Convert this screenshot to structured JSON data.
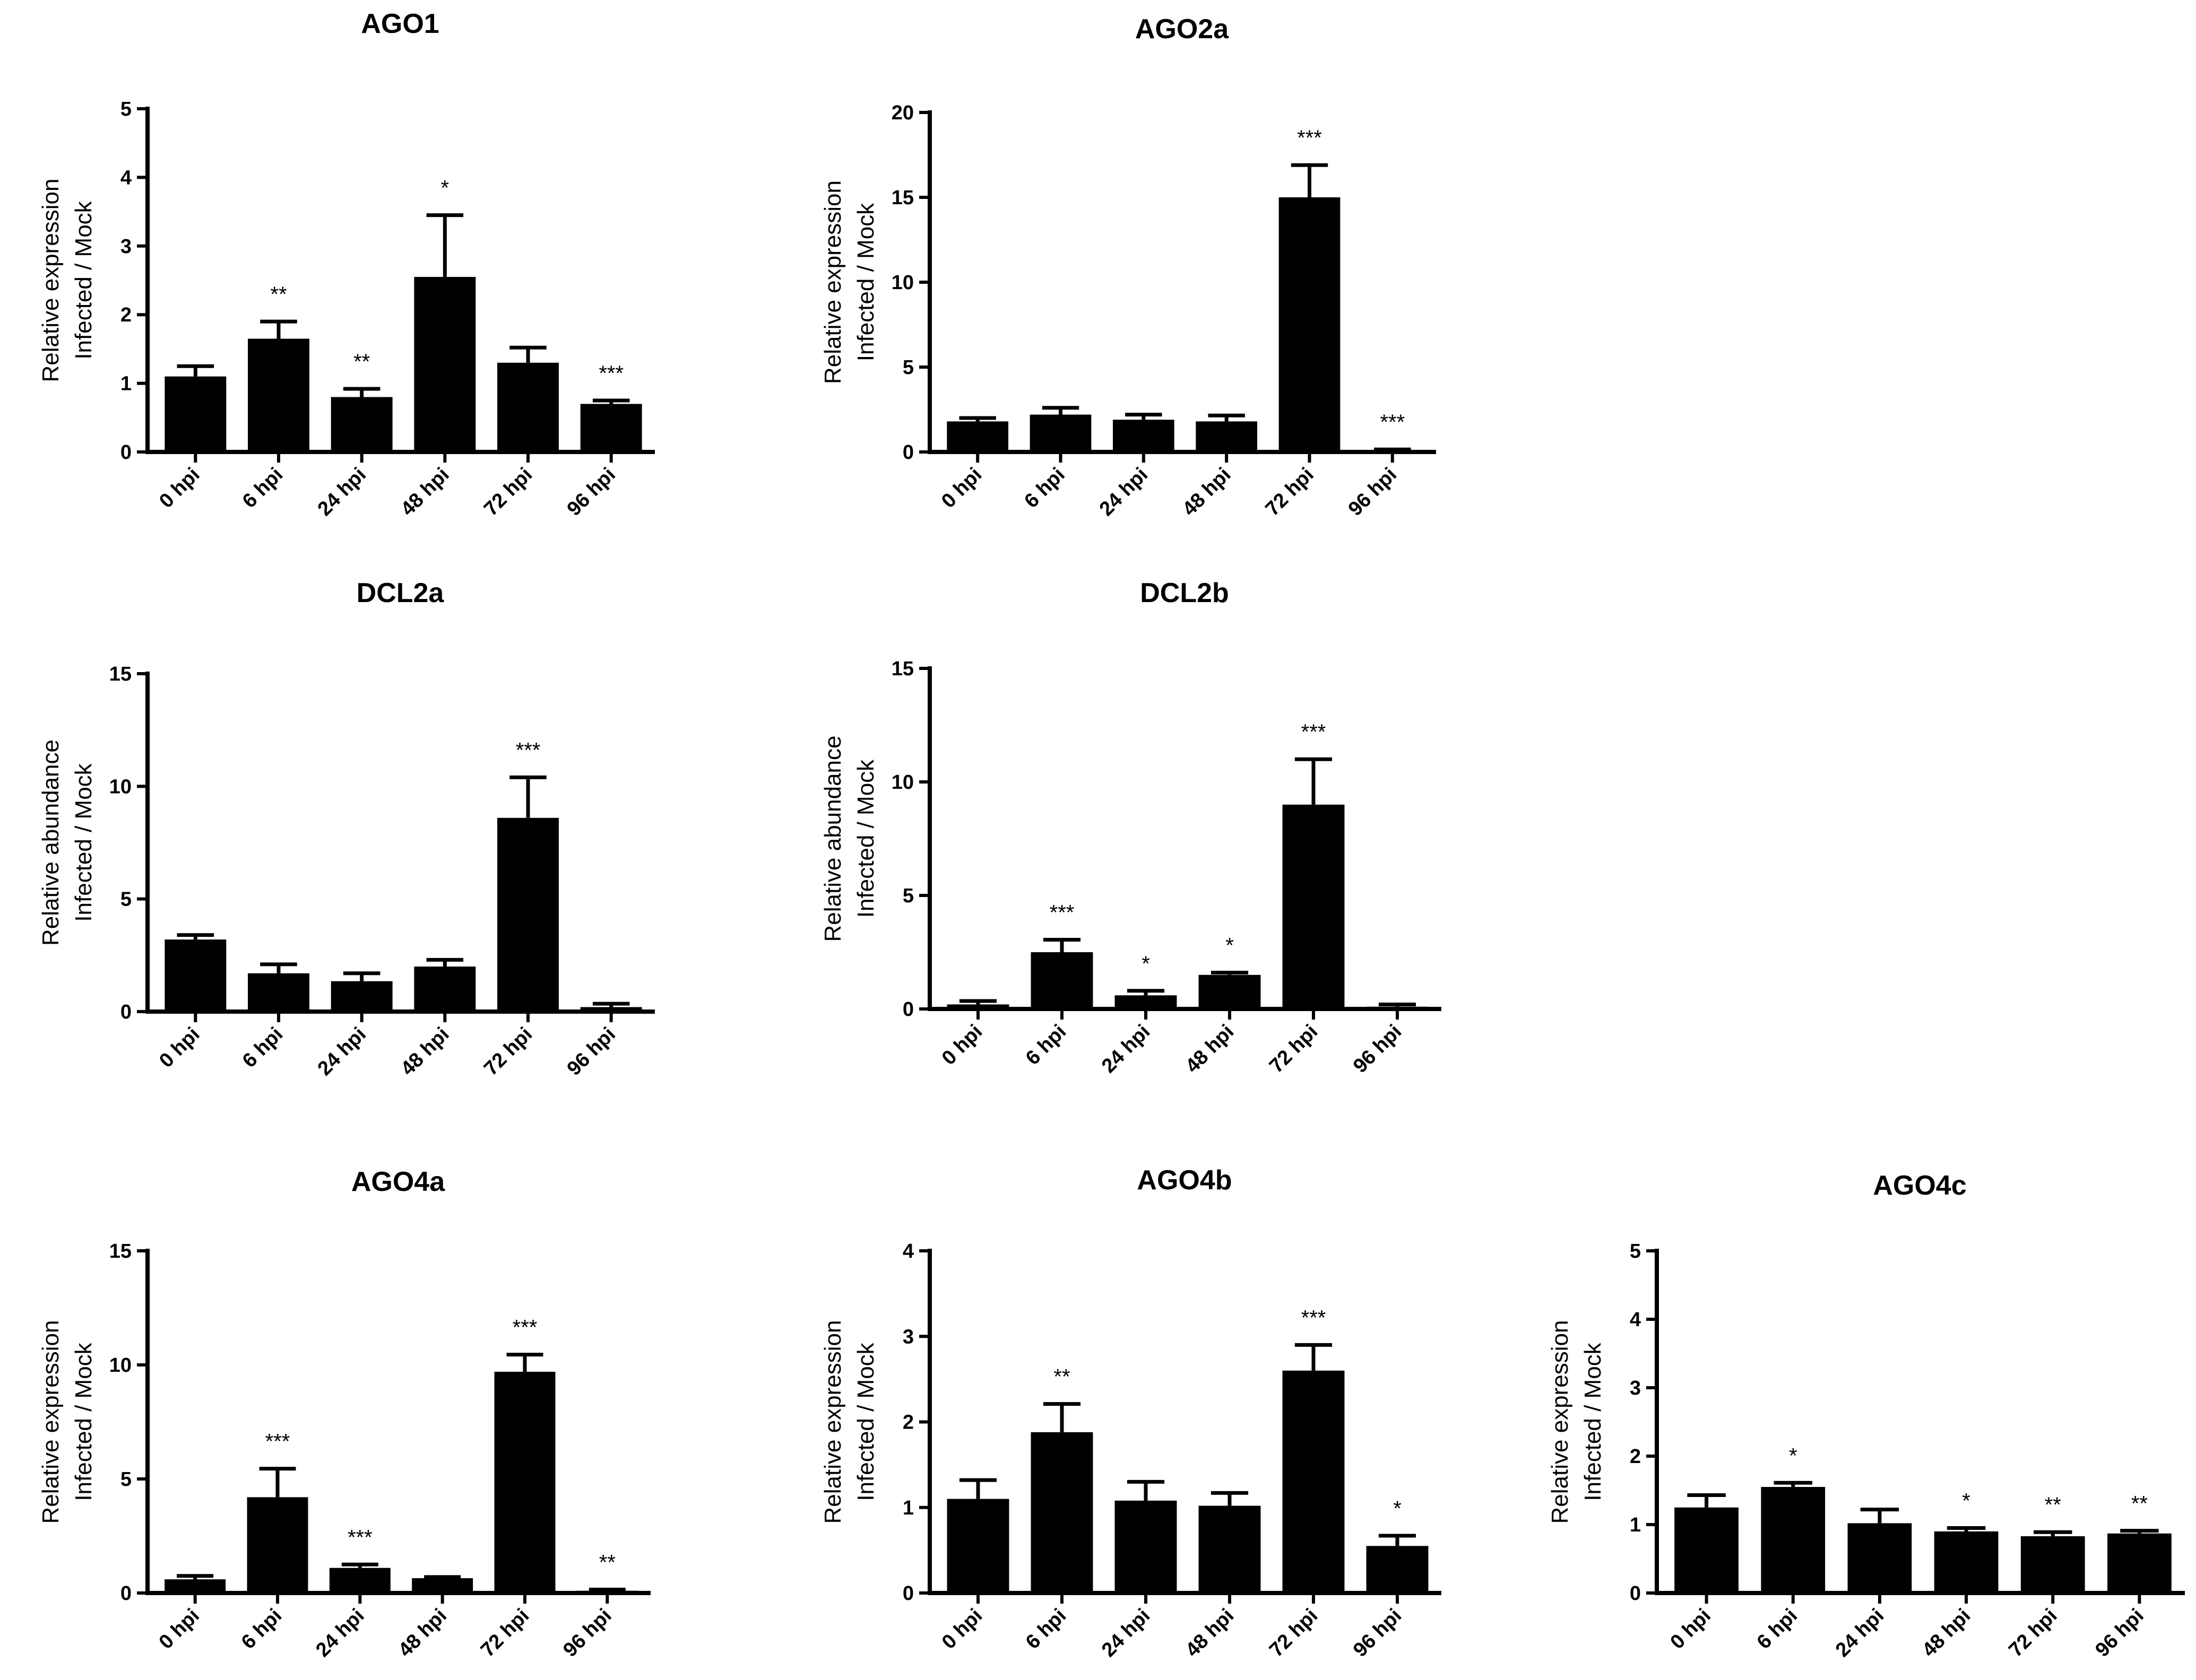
{
  "chart_data": [
    {
      "type": "bar",
      "title": "AGO1",
      "ylabel": [
        "Relative expression",
        "Infected / Mock"
      ],
      "xlabel": "",
      "categories": [
        "0 hpi",
        "6 hpi",
        "24 hpi",
        "48 hpi",
        "72 hpi",
        "96 hpi"
      ],
      "values": [
        1.1,
        1.65,
        0.8,
        2.55,
        1.3,
        0.7
      ],
      "errors": [
        0.15,
        0.25,
        0.12,
        0.9,
        0.22,
        0.05
      ],
      "significance": [
        "",
        "**",
        "**",
        "*",
        "",
        "***"
      ],
      "ylim": [
        0,
        5
      ],
      "yticks": [
        0,
        1,
        2,
        3,
        4,
        5
      ]
    },
    {
      "type": "bar",
      "title": "AGO2a",
      "ylabel": [
        "Relative expression",
        "Infected / Mock"
      ],
      "xlabel": "",
      "categories": [
        "0 hpi",
        "6 hpi",
        "24 hpi",
        "48 hpi",
        "72 hpi",
        "96 hpi"
      ],
      "values": [
        1.8,
        2.2,
        1.9,
        1.8,
        15.0,
        0.1
      ],
      "errors": [
        0.2,
        0.4,
        0.3,
        0.35,
        1.9,
        0.05
      ],
      "significance": [
        "",
        "",
        "",
        "",
        "***",
        "***"
      ],
      "ylim": [
        0,
        20
      ],
      "yticks": [
        0,
        5,
        10,
        15,
        20
      ]
    },
    {
      "type": "bar",
      "title": "DCL2a",
      "ylabel": [
        "Relative abundance",
        "Infected / Mock"
      ],
      "xlabel": "",
      "categories": [
        "0 hpi",
        "6 hpi",
        "24 hpi",
        "48 hpi",
        "72 hpi",
        "96 hpi"
      ],
      "values": [
        3.2,
        1.7,
        1.35,
        2.0,
        8.6,
        0.2
      ],
      "errors": [
        0.2,
        0.4,
        0.35,
        0.3,
        1.8,
        0.15
      ],
      "significance": [
        "",
        "",
        "",
        "",
        "***",
        ""
      ],
      "ylim": [
        0,
        15
      ],
      "yticks": [
        0,
        5,
        10,
        15
      ]
    },
    {
      "type": "bar",
      "title": "DCL2b",
      "ylabel": [
        "Relative abundance",
        "Infected / Mock"
      ],
      "xlabel": "",
      "categories": [
        "0 hpi",
        "6 hpi",
        "24 hpi",
        "48 hpi",
        "72 hpi",
        "96 hpi"
      ],
      "values": [
        0.2,
        2.5,
        0.6,
        1.5,
        9.0,
        0.1
      ],
      "errors": [
        0.15,
        0.55,
        0.2,
        0.1,
        2.0,
        0.1
      ],
      "significance": [
        "",
        "***",
        "*",
        "*",
        "***",
        ""
      ],
      "ylim": [
        0,
        15
      ],
      "yticks": [
        0,
        5,
        10,
        15
      ]
    },
    {
      "type": "bar",
      "title": "AGO4a",
      "ylabel": [
        "Relative expression",
        "Infected / Mock"
      ],
      "xlabel": "",
      "categories": [
        "0 hpi",
        "6 hpi",
        "24 hpi",
        "48 hpi",
        "72 hpi",
        "96 hpi"
      ],
      "values": [
        0.6,
        4.2,
        1.1,
        0.65,
        9.7,
        0.1
      ],
      "errors": [
        0.15,
        1.25,
        0.15,
        0.05,
        0.75,
        0.05
      ],
      "significance": [
        "",
        "***",
        "***",
        "",
        "***",
        "**"
      ],
      "ylim": [
        0,
        15
      ],
      "yticks": [
        0,
        5,
        10,
        15
      ]
    },
    {
      "type": "bar",
      "title": "AGO4b",
      "ylabel": [
        "Relative expression",
        "Infected / Mock"
      ],
      "xlabel": "",
      "categories": [
        "0 hpi",
        "6 hpi",
        "24 hpi",
        "48 hpi",
        "72 hpi",
        "96 hpi"
      ],
      "values": [
        1.1,
        1.88,
        1.08,
        1.02,
        2.6,
        0.55
      ],
      "errors": [
        0.22,
        0.33,
        0.22,
        0.15,
        0.3,
        0.12
      ],
      "significance": [
        "",
        "**",
        "",
        "",
        "***",
        "*"
      ],
      "ylim": [
        0,
        4
      ],
      "yticks": [
        0,
        1,
        2,
        3,
        4
      ]
    },
    {
      "type": "bar",
      "title": "AGO4c",
      "ylabel": [
        "Relative expression",
        "Infected / Mock"
      ],
      "xlabel": "",
      "categories": [
        "0 hpi",
        "6 hpi",
        "24 hpi",
        "48 hpi",
        "72 hpi",
        "96 hpi"
      ],
      "values": [
        1.25,
        1.55,
        1.02,
        0.9,
        0.83,
        0.87
      ],
      "errors": [
        0.18,
        0.06,
        0.2,
        0.05,
        0.06,
        0.04
      ],
      "significance": [
        "",
        "*",
        "",
        "*",
        "**",
        "**"
      ],
      "ylim": [
        0,
        5
      ],
      "yticks": [
        0,
        1,
        2,
        3,
        4,
        5
      ]
    }
  ]
}
